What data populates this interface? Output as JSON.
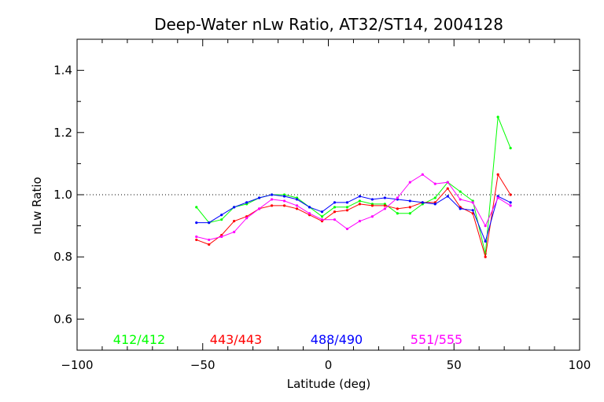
{
  "chart_data": {
    "type": "line",
    "title": "Deep-Water nLw Ratio, AT32/ST14, 2004128",
    "xlabel": "Latitude (deg)",
    "ylabel": "nLw Ratio",
    "xlim": [
      -100,
      100
    ],
    "ylim": [
      0.5,
      1.5
    ],
    "x_ticks": [
      -100,
      -50,
      0,
      50,
      100
    ],
    "x_tick_labels": [
      "−100",
      "−50",
      "0",
      "50",
      "100"
    ],
    "y_ticks": [
      0.6,
      0.8,
      1.0,
      1.2,
      1.4
    ],
    "y_tick_labels": [
      "0.6",
      "0.8",
      "1.0",
      "1.2",
      "1.4"
    ],
    "reference_line": {
      "y": 1.0,
      "style": "dotted"
    },
    "grid": false,
    "series": [
      {
        "name": "412/412",
        "color": "#00ff00",
        "x": [
          -52.5,
          -47.5,
          -42.5,
          -37.5,
          -32.5,
          -27.5,
          -22.5,
          -17.5,
          -12.5,
          -7.5,
          -2.5,
          2.5,
          7.5,
          12.5,
          17.5,
          22.5,
          27.5,
          32.5,
          37.5,
          42.5,
          47.5,
          52.5,
          57.5,
          62.5,
          67.5,
          72.5
        ],
        "values": [
          0.96,
          0.91,
          0.92,
          0.96,
          0.97,
          0.99,
          1.0,
          1.0,
          0.99,
          0.96,
          0.93,
          0.96,
          0.96,
          0.98,
          0.97,
          0.97,
          0.94,
          0.94,
          0.97,
          0.99,
          1.04,
          1.01,
          0.98,
          0.81,
          1.25,
          1.15
        ]
      },
      {
        "name": "443/443",
        "color": "#ff0000",
        "x": [
          -52.5,
          -47.5,
          -42.5,
          -37.5,
          -32.5,
          -27.5,
          -22.5,
          -17.5,
          -12.5,
          -7.5,
          -2.5,
          2.5,
          7.5,
          12.5,
          17.5,
          22.5,
          27.5,
          32.5,
          37.5,
          42.5,
          47.5,
          52.5,
          57.5,
          62.5,
          67.5,
          72.5
        ],
        "values": [
          0.855,
          0.84,
          0.87,
          0.915,
          0.93,
          0.955,
          0.965,
          0.965,
          0.955,
          0.935,
          0.915,
          0.945,
          0.95,
          0.97,
          0.965,
          0.965,
          0.955,
          0.96,
          0.975,
          0.975,
          1.02,
          0.96,
          0.94,
          0.8,
          1.065,
          1.0
        ]
      },
      {
        "name": "488/490",
        "color": "#0000ff",
        "x": [
          -52.5,
          -47.5,
          -42.5,
          -37.5,
          -32.5,
          -27.5,
          -22.5,
          -17.5,
          -12.5,
          -7.5,
          -2.5,
          2.5,
          7.5,
          12.5,
          17.5,
          22.5,
          27.5,
          32.5,
          37.5,
          42.5,
          47.5,
          52.5,
          57.5,
          62.5,
          67.5,
          72.5
        ],
        "values": [
          0.91,
          0.91,
          0.935,
          0.96,
          0.975,
          0.99,
          1.0,
          0.995,
          0.985,
          0.96,
          0.945,
          0.975,
          0.975,
          0.995,
          0.985,
          0.99,
          0.985,
          0.98,
          0.975,
          0.97,
          0.995,
          0.955,
          0.95,
          0.85,
          0.995,
          0.975
        ]
      },
      {
        "name": "551/555",
        "color": "#ff00ff",
        "x": [
          -52.5,
          -47.5,
          -42.5,
          -37.5,
          -32.5,
          -27.5,
          -22.5,
          -17.5,
          -12.5,
          -7.5,
          -2.5,
          2.5,
          7.5,
          12.5,
          17.5,
          22.5,
          27.5,
          32.5,
          37.5,
          42.5,
          47.5,
          52.5,
          57.5,
          62.5,
          67.5,
          72.5
        ],
        "values": [
          0.865,
          0.855,
          0.865,
          0.88,
          0.925,
          0.955,
          0.985,
          0.98,
          0.965,
          0.94,
          0.92,
          0.92,
          0.89,
          0.915,
          0.93,
          0.955,
          0.99,
          1.04,
          1.065,
          1.035,
          1.04,
          0.985,
          0.975,
          0.9,
          0.99,
          0.965
        ]
      }
    ],
    "legend_placement": "bottom, inside plot"
  }
}
